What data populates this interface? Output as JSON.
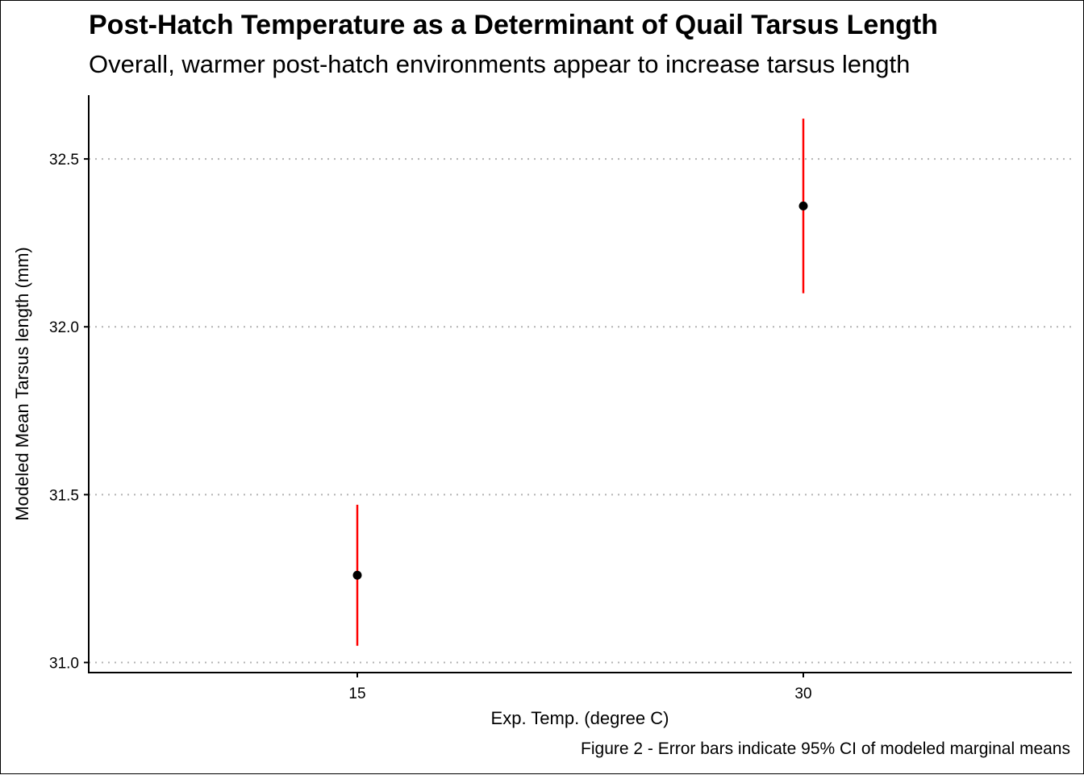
{
  "chart_data": {
    "type": "scatter",
    "title": "Post-Hatch Temperature as a Determinant of Quail Tarsus Length",
    "subtitle": "Overall, warmer post-hatch environments appear to increase tarsus length",
    "caption": "Figure 2 - Error bars indicate 95% CI of modeled marginal means",
    "xlabel": "Exp. Temp. (degree C)",
    "ylabel": "Modeled Mean Tarsus length (mm)",
    "categories": [
      "15",
      "30"
    ],
    "values": [
      31.26,
      32.36
    ],
    "ci_lower": [
      31.05,
      32.1
    ],
    "ci_upper": [
      31.47,
      32.62
    ],
    "ylim": [
      30.97,
      32.69
    ],
    "yticks": [
      31.0,
      31.5,
      32.0,
      32.5
    ],
    "ytick_labels": [
      "31.0",
      "31.5",
      "32.0",
      "32.5"
    ],
    "grid": "horizontal dotted",
    "legend": "none",
    "colors": {
      "point": "#000000",
      "error_bar": "#ff0000",
      "grid": "#b3b3b3",
      "axis": "#000000"
    }
  }
}
